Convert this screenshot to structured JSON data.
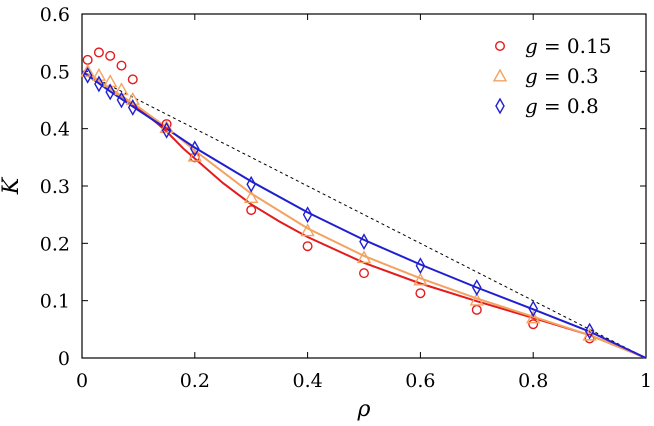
{
  "chart_data": {
    "type": "scatter",
    "title": "",
    "xlabel": "ρ",
    "ylabel": "K",
    "xlim": [
      0,
      1
    ],
    "ylim": [
      0,
      0.6
    ],
    "x_ticks": [
      "0",
      "0.2",
      "0.4",
      "0.6",
      "0.8",
      "1"
    ],
    "y_ticks": [
      "0",
      "0.1",
      "0.2",
      "0.3",
      "0.4",
      "0.5",
      "0.6"
    ],
    "grid": false,
    "legend_position": "top-right",
    "reference_line": {
      "style": "dashed",
      "color": "#000000",
      "x": [
        0,
        1
      ],
      "y": [
        0.5,
        0
      ]
    },
    "series": [
      {
        "name": "g = 0.15",
        "legend_symbol": "g",
        "legend_value": "= 0.15",
        "marker": "circle",
        "color": "#e41a1c",
        "points": [
          [
            0.01,
            0.52
          ],
          [
            0.03,
            0.533
          ],
          [
            0.05,
            0.527
          ],
          [
            0.07,
            0.51
          ],
          [
            0.09,
            0.486
          ],
          [
            0.15,
            0.408
          ],
          [
            0.2,
            0.35
          ],
          [
            0.3,
            0.258
          ],
          [
            0.4,
            0.195
          ],
          [
            0.5,
            0.148
          ],
          [
            0.6,
            0.113
          ],
          [
            0.7,
            0.084
          ],
          [
            0.8,
            0.059
          ],
          [
            0.9,
            0.034
          ]
        ],
        "curve": [
          [
            0,
            0.5
          ],
          [
            0.02,
            0.49
          ],
          [
            0.05,
            0.47
          ],
          [
            0.08,
            0.45
          ],
          [
            0.1,
            0.435
          ],
          [
            0.13,
            0.412
          ],
          [
            0.15,
            0.395
          ],
          [
            0.18,
            0.365
          ],
          [
            0.2,
            0.348
          ],
          [
            0.25,
            0.305
          ],
          [
            0.3,
            0.268
          ],
          [
            0.35,
            0.238
          ],
          [
            0.4,
            0.211
          ],
          [
            0.5,
            0.166
          ],
          [
            0.6,
            0.13
          ],
          [
            0.7,
            0.099
          ],
          [
            0.8,
            0.07
          ],
          [
            0.9,
            0.04
          ],
          [
            1,
            0
          ]
        ]
      },
      {
        "name": "g = 0.3",
        "legend_symbol": "g",
        "legend_value": "= 0.3",
        "marker": "triangle",
        "color": "#f4a261",
        "points": [
          [
            0.01,
            0.5
          ],
          [
            0.03,
            0.493
          ],
          [
            0.05,
            0.482
          ],
          [
            0.07,
            0.468
          ],
          [
            0.09,
            0.451
          ],
          [
            0.15,
            0.402
          ],
          [
            0.2,
            0.352
          ],
          [
            0.3,
            0.28
          ],
          [
            0.4,
            0.222
          ],
          [
            0.5,
            0.175
          ],
          [
            0.6,
            0.136
          ],
          [
            0.7,
            0.101
          ],
          [
            0.8,
            0.07
          ],
          [
            0.9,
            0.04
          ]
        ],
        "curve": [
          [
            0,
            0.5
          ],
          [
            0.02,
            0.49
          ],
          [
            0.05,
            0.47
          ],
          [
            0.1,
            0.438
          ],
          [
            0.15,
            0.402
          ],
          [
            0.2,
            0.362
          ],
          [
            0.3,
            0.287
          ],
          [
            0.4,
            0.226
          ],
          [
            0.5,
            0.178
          ],
          [
            0.6,
            0.139
          ],
          [
            0.7,
            0.104
          ],
          [
            0.8,
            0.072
          ],
          [
            0.9,
            0.04
          ],
          [
            1,
            0
          ]
        ]
      },
      {
        "name": "g = 0.8",
        "legend_symbol": "g",
        "legend_value": "= 0.8",
        "marker": "diamond",
        "color": "#1f1fd1",
        "points": [
          [
            0.01,
            0.493
          ],
          [
            0.03,
            0.478
          ],
          [
            0.05,
            0.464
          ],
          [
            0.07,
            0.45
          ],
          [
            0.09,
            0.437
          ],
          [
            0.15,
            0.397
          ],
          [
            0.2,
            0.365
          ],
          [
            0.3,
            0.303
          ],
          [
            0.4,
            0.25
          ],
          [
            0.5,
            0.203
          ],
          [
            0.6,
            0.161
          ],
          [
            0.7,
            0.123
          ],
          [
            0.8,
            0.086
          ],
          [
            0.9,
            0.047
          ]
        ],
        "curve": [
          [
            0,
            0.5
          ],
          [
            0.05,
            0.465
          ],
          [
            0.1,
            0.432
          ],
          [
            0.15,
            0.4
          ],
          [
            0.2,
            0.367
          ],
          [
            0.3,
            0.308
          ],
          [
            0.4,
            0.254
          ],
          [
            0.5,
            0.206
          ],
          [
            0.6,
            0.163
          ],
          [
            0.7,
            0.123
          ],
          [
            0.8,
            0.085
          ],
          [
            0.9,
            0.046
          ],
          [
            1,
            0
          ]
        ]
      }
    ]
  }
}
